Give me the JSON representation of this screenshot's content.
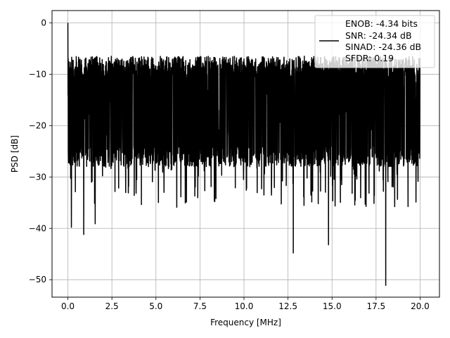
{
  "chart_data": {
    "type": "line",
    "title": "",
    "xlabel": "Frequency [MHz]",
    "ylabel": "PSD [dB]",
    "xlim": [
      -0.9,
      21.1
    ],
    "ylim": [
      -53.4,
      2.4
    ],
    "xticks": [
      0.0,
      2.5,
      5.0,
      7.5,
      10.0,
      12.5,
      15.0,
      17.5,
      20.0
    ],
    "xtick_labels": [
      "0.0",
      "2.5",
      "5.0",
      "7.5",
      "10.0",
      "12.5",
      "15.0",
      "17.5",
      "20.0"
    ],
    "yticks": [
      0,
      -10,
      -20,
      -30,
      -40,
      -50
    ],
    "ytick_labels": [
      "0",
      "−10",
      "−20",
      "−30",
      "−40",
      "−50"
    ],
    "grid": true,
    "line_color": "#000000",
    "grid_color": "#b0b0b0",
    "legend_position": "top-right",
    "legend_entries": [
      "ENOB: -4.34 bits",
      "SNR: -24.34 dB",
      "SINAD: -24.36 dB",
      "SFDR: 0.19"
    ],
    "series": [
      {
        "x_range": [
          0.0,
          20.0
        ],
        "notable_points": [
          {
            "x": 0.0,
            "y": 0.0
          },
          {
            "x": 0.2,
            "y": -39.8
          },
          {
            "x": 0.9,
            "y": -41.2
          },
          {
            "x": 1.55,
            "y": -39.1
          },
          {
            "x": 12.8,
            "y": -44.8
          },
          {
            "x": 14.8,
            "y": -43.2
          },
          {
            "x": 18.05,
            "y": -51.1
          }
        ],
        "typical_band": [
          -27,
          -8
        ]
      }
    ]
  }
}
